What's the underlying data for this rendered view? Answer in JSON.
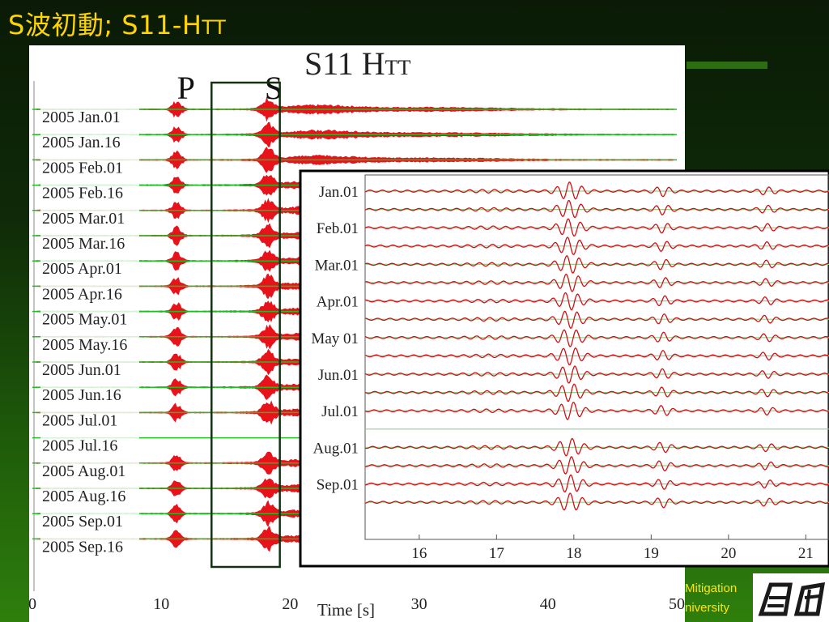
{
  "slide": {
    "title_main": "S波初動; S11-H",
    "title_sub": "TT",
    "footer_line1": "Mitigation",
    "footer_line2": "niversity"
  },
  "colors": {
    "title": "#ffd400",
    "trace_fill": "#e8121a",
    "baseline": "#22bb22",
    "inset_wave": "#d40f14",
    "inset_baseline": "#8fd08f",
    "footer_text": "#ffe600"
  },
  "chart_data": [
    {
      "type": "line",
      "title": "S11 H",
      "title_sub": "TT",
      "phase_markers": [
        {
          "label": "P",
          "x": 12.1
        },
        {
          "label": "S",
          "x": 18.9
        }
      ],
      "highlight_window": [
        13.9,
        19.2
      ],
      "xlabel": "Time [s]",
      "xlim": [
        0,
        50
      ],
      "xticks": [
        0,
        10,
        20,
        30,
        40,
        50
      ],
      "series": [
        {
          "name": "2005 Jan.01",
          "missing": false
        },
        {
          "name": "2005 Jan.16",
          "missing": false
        },
        {
          "name": "2005 Feb.01",
          "missing": false
        },
        {
          "name": "2005 Feb.16",
          "missing": false
        },
        {
          "name": "2005 Mar.01",
          "missing": false
        },
        {
          "name": "2005 Mar.16",
          "missing": false
        },
        {
          "name": "2005 Apr.01",
          "missing": false
        },
        {
          "name": "2005 Apr.16",
          "missing": false
        },
        {
          "name": "2005 May.01",
          "missing": false
        },
        {
          "name": "2005 May.16",
          "missing": false
        },
        {
          "name": "2005 Jun.01",
          "missing": false
        },
        {
          "name": "2005 Jun.16",
          "missing": false
        },
        {
          "name": "2005 Jul.01",
          "missing": false
        },
        {
          "name": "2005 Jul.16",
          "missing": true
        },
        {
          "name": "2005 Aug.01",
          "missing": false
        },
        {
          "name": "2005 Aug.16",
          "missing": false
        },
        {
          "name": "2005 Sep.01",
          "missing": false
        },
        {
          "name": "2005 Sep.16",
          "missing": false
        }
      ]
    },
    {
      "type": "line",
      "xlim": [
        15.3,
        21.3
      ],
      "xticks": [
        16,
        17,
        18,
        19,
        20,
        21
      ],
      "row_labels": [
        "Jan.01",
        "Feb.01",
        "Mar.01",
        "Apr.01",
        "May 01",
        "Jun.01",
        "Jul.01",
        "Aug.01",
        "Sep.01"
      ],
      "rows": 18,
      "missing_rows": [
        13
      ],
      "wave_packets_s": [
        {
          "t": 17.95,
          "amp": 1.0
        },
        {
          "t": 19.15,
          "amp": 0.55
        },
        {
          "t": 20.5,
          "amp": 0.4
        }
      ]
    }
  ]
}
